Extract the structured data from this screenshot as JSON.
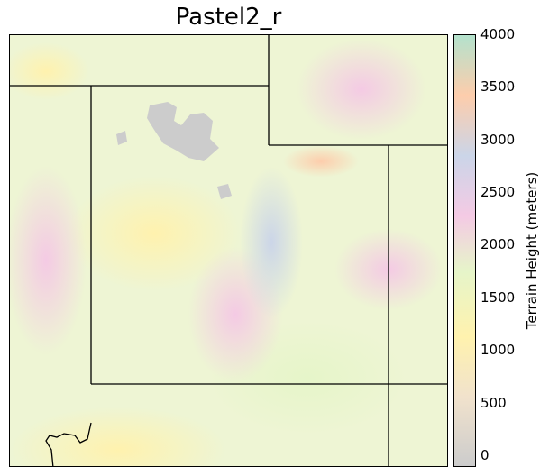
{
  "title": "Pastel2_r",
  "colorbar": {
    "label": "Terrain Height (meters)",
    "ticks": [
      "4000",
      "3500",
      "3000",
      "2500",
      "2000",
      "1500",
      "1000",
      "500",
      "0"
    ],
    "range": [
      -110,
      4000
    ],
    "colormap": "Pastel2_r",
    "colors": [
      "#cccccc",
      "#f1e2cc",
      "#fff2ae",
      "#e6f5c9",
      "#f4cae4",
      "#cbd5e8",
      "#fdcdac",
      "#b3e2cd"
    ]
  }
}
